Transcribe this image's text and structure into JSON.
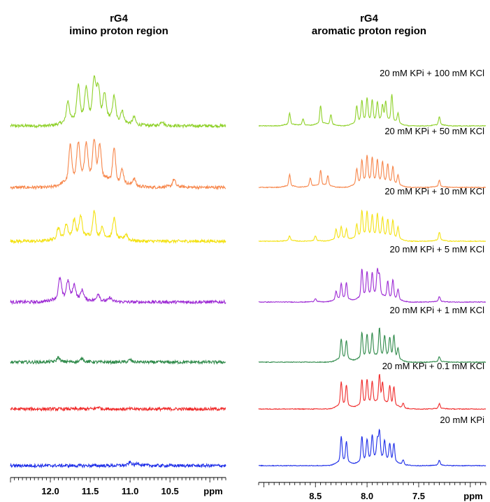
{
  "titles": {
    "left": {
      "line1": "rG4",
      "line2": "imino proton region"
    },
    "right": {
      "line1": "rG4",
      "line2": "aromatic proton region"
    }
  },
  "chart_data": [
    {
      "type": "line",
      "panel": "imino",
      "title": "rG4 imino proton region",
      "xlabel": "ppm",
      "x_reversed": true,
      "xlim": [
        12.5,
        9.8
      ],
      "x_tick_labels": [
        "12.0",
        "11.5",
        "11.0",
        "10.5",
        "ppm"
      ],
      "x_ticks": [
        12.0,
        11.5,
        11.0,
        10.5
      ],
      "series": [
        {
          "name": "20 mM KPi + 100 mM KCl",
          "color": "#8fd12a",
          "peaks": [
            [
              11.78,
              0.55
            ],
            [
              11.65,
              0.9
            ],
            [
              11.55,
              0.75
            ],
            [
              11.45,
              1.0
            ],
            [
              11.4,
              0.8
            ],
            [
              11.32,
              0.6
            ],
            [
              11.2,
              0.65
            ],
            [
              11.1,
              0.3
            ],
            [
              10.95,
              0.2
            ],
            [
              10.6,
              0.12
            ]
          ]
        },
        {
          "name": "20 mM KPi + 50 mM KCl",
          "color": "#f7864a",
          "peaks": [
            [
              11.75,
              0.95
            ],
            [
              11.65,
              0.95
            ],
            [
              11.55,
              0.9
            ],
            [
              11.45,
              1.0
            ],
            [
              11.38,
              0.9
            ],
            [
              11.2,
              0.9
            ],
            [
              11.1,
              0.35
            ],
            [
              10.95,
              0.2
            ],
            [
              10.45,
              0.2
            ]
          ]
        },
        {
          "name": "20 mM KPi + 10 mM KCl",
          "color": "#f4e213",
          "peaks": [
            [
              11.9,
              0.3
            ],
            [
              11.8,
              0.35
            ],
            [
              11.7,
              0.45
            ],
            [
              11.62,
              0.55
            ],
            [
              11.45,
              0.7
            ],
            [
              11.35,
              0.25
            ],
            [
              11.2,
              0.55
            ],
            [
              11.05,
              0.15
            ]
          ]
        },
        {
          "name": "20 mM KPi + 5 mM KCl",
          "color": "#9d2ad4",
          "peaks": [
            [
              11.88,
              0.55
            ],
            [
              11.78,
              0.45
            ],
            [
              11.7,
              0.35
            ],
            [
              11.6,
              0.25
            ],
            [
              11.4,
              0.2
            ],
            [
              11.25,
              0.1
            ]
          ]
        },
        {
          "name": "20 mM KPi + 1 mM KCl",
          "color": "#2f8a4a",
          "peaks": [
            [
              11.9,
              0.12
            ],
            [
              11.6,
              0.1
            ],
            [
              11.0,
              0.06
            ]
          ]
        },
        {
          "name": "20 mM KPi + 0.1 mM KCl",
          "color": "#f02a2a",
          "peaks": [
            [
              11.4,
              0.05
            ]
          ]
        },
        {
          "name": "20 mM KPi",
          "color": "#1c2ce8",
          "peaks": [
            [
              11.0,
              0.08
            ],
            [
              10.9,
              0.06
            ]
          ]
        }
      ]
    },
    {
      "type": "line",
      "panel": "aromatic",
      "title": "rG4 aromatic proton region",
      "xlabel": "ppm",
      "x_reversed": true,
      "xlim": [
        9.05,
        6.85
      ],
      "x_tick_labels": [
        "8.5",
        "8.0",
        "7.5",
        "ppm"
      ],
      "x_ticks": [
        8.5,
        8.0,
        7.5
      ],
      "series": [
        {
          "name": "20 mM KPi + 100 mM KCl",
          "color": "#8fd12a",
          "peaks": [
            [
              8.75,
              0.35
            ],
            [
              8.62,
              0.2
            ],
            [
              8.45,
              0.55
            ],
            [
              8.35,
              0.3
            ],
            [
              8.1,
              0.5
            ],
            [
              8.05,
              0.6
            ],
            [
              8.0,
              0.65
            ],
            [
              7.95,
              0.6
            ],
            [
              7.9,
              0.55
            ],
            [
              7.85,
              0.45
            ],
            [
              7.82,
              0.55
            ],
            [
              7.76,
              0.8
            ],
            [
              7.7,
              0.3
            ],
            [
              7.3,
              0.25
            ]
          ]
        },
        {
          "name": "20 mM KPi + 50 mM KCl",
          "color": "#f7864a",
          "peaks": [
            [
              8.75,
              0.35
            ],
            [
              8.55,
              0.25
            ],
            [
              8.45,
              0.45
            ],
            [
              8.38,
              0.3
            ],
            [
              8.1,
              0.45
            ],
            [
              8.05,
              0.65
            ],
            [
              8.0,
              0.75
            ],
            [
              7.95,
              0.7
            ],
            [
              7.9,
              0.65
            ],
            [
              7.85,
              0.6
            ],
            [
              7.8,
              0.55
            ],
            [
              7.75,
              0.5
            ],
            [
              7.7,
              0.3
            ],
            [
              7.3,
              0.2
            ]
          ]
        },
        {
          "name": "20 mM KPi + 10 mM KCl",
          "color": "#f4e213",
          "peaks": [
            [
              8.75,
              0.15
            ],
            [
              8.5,
              0.15
            ],
            [
              8.3,
              0.3
            ],
            [
              8.25,
              0.35
            ],
            [
              8.2,
              0.3
            ],
            [
              8.1,
              0.4
            ],
            [
              8.05,
              0.75
            ],
            [
              8.0,
              0.7
            ],
            [
              7.95,
              0.6
            ],
            [
              7.9,
              0.65
            ],
            [
              7.85,
              0.55
            ],
            [
              7.8,
              0.5
            ],
            [
              7.75,
              0.5
            ],
            [
              7.7,
              0.35
            ],
            [
              7.3,
              0.25
            ]
          ]
        },
        {
          "name": "20 mM KPi + 5 mM KCl",
          "color": "#9d2ad4",
          "peaks": [
            [
              8.5,
              0.1
            ],
            [
              8.3,
              0.25
            ],
            [
              8.25,
              0.45
            ],
            [
              8.2,
              0.5
            ],
            [
              8.05,
              0.85
            ],
            [
              8.0,
              0.7
            ],
            [
              7.95,
              0.65
            ],
            [
              7.9,
              0.75
            ],
            [
              7.88,
              0.6
            ],
            [
              7.8,
              0.5
            ],
            [
              7.75,
              0.55
            ],
            [
              7.7,
              0.3
            ],
            [
              7.3,
              0.15
            ]
          ]
        },
        {
          "name": "20 mM KPi + 1 mM KCl",
          "color": "#2f8a4a",
          "peaks": [
            [
              8.25,
              0.6
            ],
            [
              8.2,
              0.55
            ],
            [
              8.05,
              0.75
            ],
            [
              8.0,
              0.65
            ],
            [
              7.95,
              0.7
            ],
            [
              7.88,
              0.85
            ],
            [
              7.83,
              0.6
            ],
            [
              7.78,
              0.55
            ],
            [
              7.74,
              0.65
            ],
            [
              7.7,
              0.3
            ],
            [
              7.3,
              0.15
            ]
          ]
        },
        {
          "name": "20 mM KPi + 0.1 mM KCl",
          "color": "#f02a2a",
          "peaks": [
            [
              8.25,
              0.7
            ],
            [
              8.2,
              0.6
            ],
            [
              8.05,
              0.75
            ],
            [
              8.0,
              0.7
            ],
            [
              7.95,
              0.65
            ],
            [
              7.88,
              0.85
            ],
            [
              7.85,
              0.6
            ],
            [
              7.78,
              0.55
            ],
            [
              7.74,
              0.55
            ],
            [
              7.65,
              0.15
            ],
            [
              7.3,
              0.15
            ]
          ]
        },
        {
          "name": "20 mM KPi",
          "color": "#1c2ce8",
          "peaks": [
            [
              8.25,
              0.75
            ],
            [
              8.2,
              0.6
            ],
            [
              8.05,
              0.75
            ],
            [
              8.0,
              0.6
            ],
            [
              7.95,
              0.7
            ],
            [
              7.9,
              0.55
            ],
            [
              7.88,
              0.8
            ],
            [
              7.83,
              0.55
            ],
            [
              7.78,
              0.5
            ],
            [
              7.74,
              0.55
            ],
            [
              7.65,
              0.15
            ],
            [
              7.3,
              0.15
            ]
          ]
        }
      ]
    }
  ]
}
